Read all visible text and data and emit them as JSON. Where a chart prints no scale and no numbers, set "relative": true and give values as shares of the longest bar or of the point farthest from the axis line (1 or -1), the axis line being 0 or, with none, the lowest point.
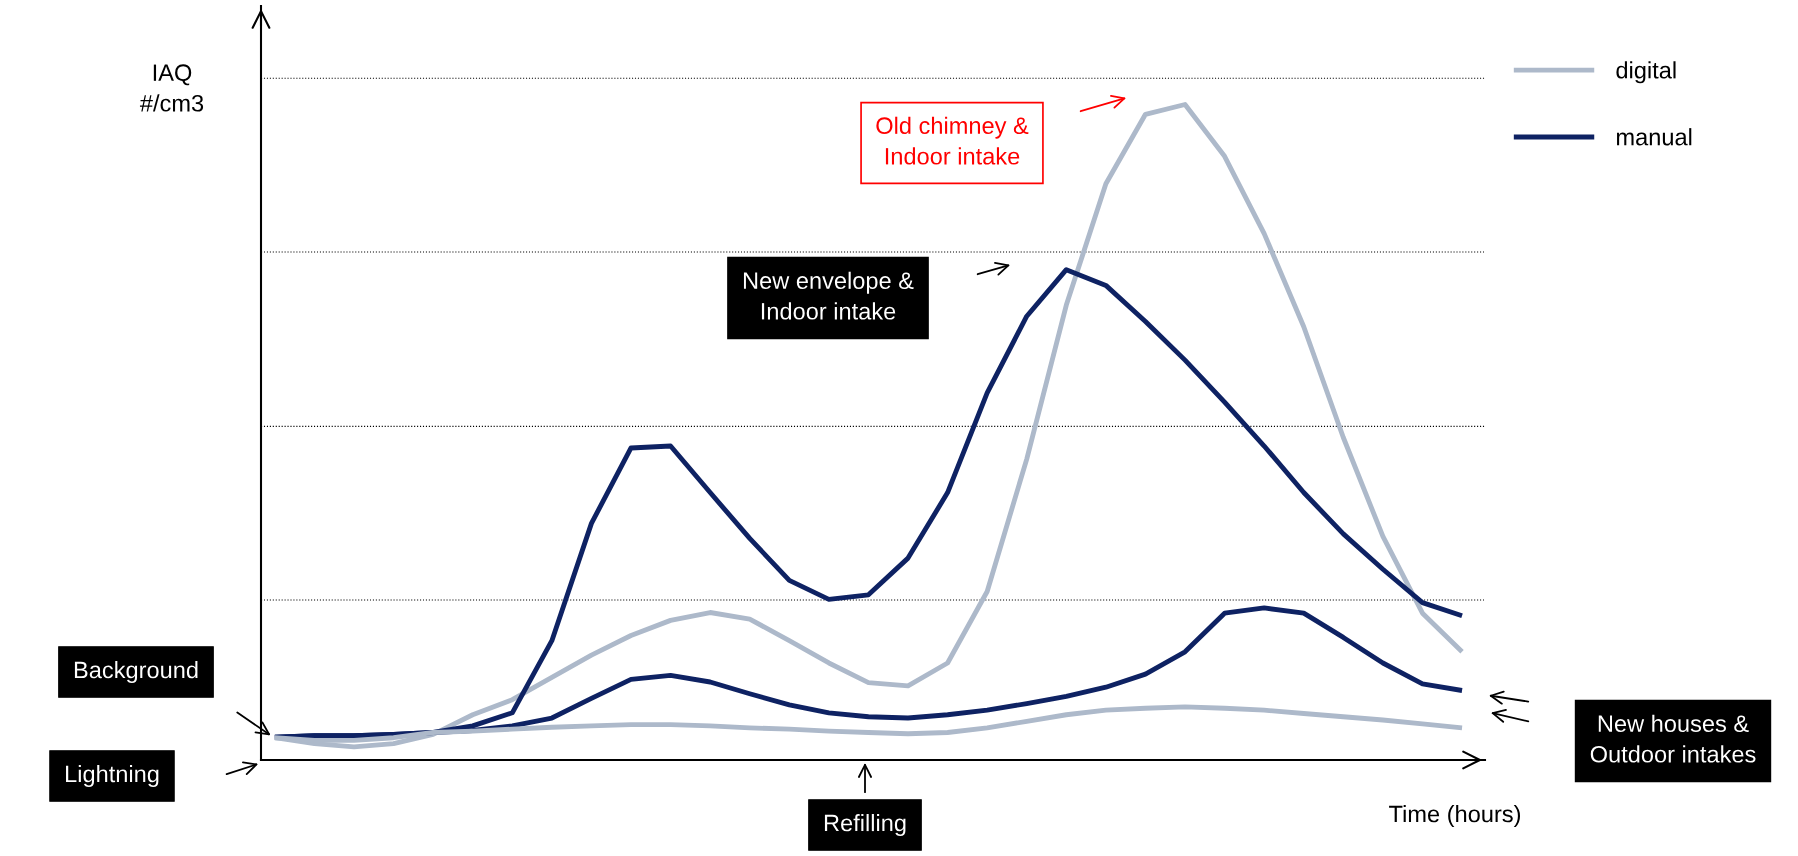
{
  "chart_data": {
    "type": "line",
    "relative": true,
    "ylabel": "IAQ\n#/cm3",
    "xlabel": "Time (hours)",
    "categories": [
      null,
      null,
      null,
      null,
      null,
      null,
      null,
      null,
      null,
      null,
      null,
      null,
      null,
      null,
      null,
      null,
      null,
      null,
      null,
      null,
      null,
      null,
      null,
      null,
      null,
      null,
      null,
      null,
      null,
      null,
      null
    ],
    "series": [
      {
        "name": "digital",
        "color": "#adb9ca",
        "values": [
          0.034,
          0.025,
          0.02,
          0.025,
          0.039,
          0.069,
          0.092,
          0.126,
          0.16,
          0.19,
          0.213,
          0.225,
          0.215,
          0.182,
          0.148,
          0.118,
          0.113,
          0.148,
          0.257,
          0.459,
          0.694,
          0.879,
          0.985,
          1.0,
          0.921,
          0.803,
          0.661,
          0.492,
          0.341,
          0.224,
          0.165
        ]
      },
      {
        "name": "manual",
        "color": "#0e2263",
        "values": [
          0.035,
          0.037,
          0.037,
          0.039,
          0.042,
          0.052,
          0.072,
          0.182,
          0.361,
          0.476,
          0.479,
          0.408,
          0.338,
          0.274,
          0.245,
          0.252,
          0.308,
          0.408,
          0.56,
          0.677,
          0.748,
          0.724,
          0.669,
          0.61,
          0.546,
          0.479,
          0.408,
          0.345,
          0.291,
          0.24,
          0.22
        ]
      },
      {
        "color": "#0e2263",
        "values": [
          0.035,
          0.037,
          0.037,
          0.039,
          0.042,
          0.045,
          0.052,
          0.064,
          0.094,
          0.123,
          0.129,
          0.119,
          0.101,
          0.084,
          0.072,
          0.066,
          0.064,
          0.069,
          0.076,
          0.086,
          0.097,
          0.111,
          0.131,
          0.165,
          0.224,
          0.232,
          0.224,
          0.187,
          0.148,
          0.116,
          0.106
        ]
      },
      {
        "color": "#adb9ca",
        "values": [
          0.034,
          0.03,
          0.03,
          0.034,
          0.042,
          0.044,
          0.047,
          0.05,
          0.052,
          0.054,
          0.054,
          0.052,
          0.049,
          0.047,
          0.044,
          0.042,
          0.04,
          0.042,
          0.049,
          0.059,
          0.069,
          0.076,
          0.079,
          0.081,
          0.079,
          0.076,
          0.071,
          0.066,
          0.061,
          0.055,
          0.049
        ]
      }
    ],
    "ref_lines": [
      {
        "axis": "y",
        "value": 0.244,
        "color": "#000000",
        "line_style": "dotted"
      },
      {
        "axis": "y",
        "value": 0.509,
        "color": "#000000",
        "line_style": "dotted"
      },
      {
        "axis": "y",
        "value": 0.775,
        "color": "#000000",
        "line_style": "dotted"
      },
      {
        "axis": "y",
        "value": 1.04,
        "color": "#000000",
        "line_style": "dotted"
      }
    ],
    "annotations": [
      "Old chimney &\nIndoor intake",
      "New envelope &\nIndoor intake",
      "Background",
      "Lightning",
      "Refilling",
      "New houses &\nOutdoor intakes"
    ],
    "legend": "top right",
    "line_style": "solid",
    "marker": "none"
  }
}
